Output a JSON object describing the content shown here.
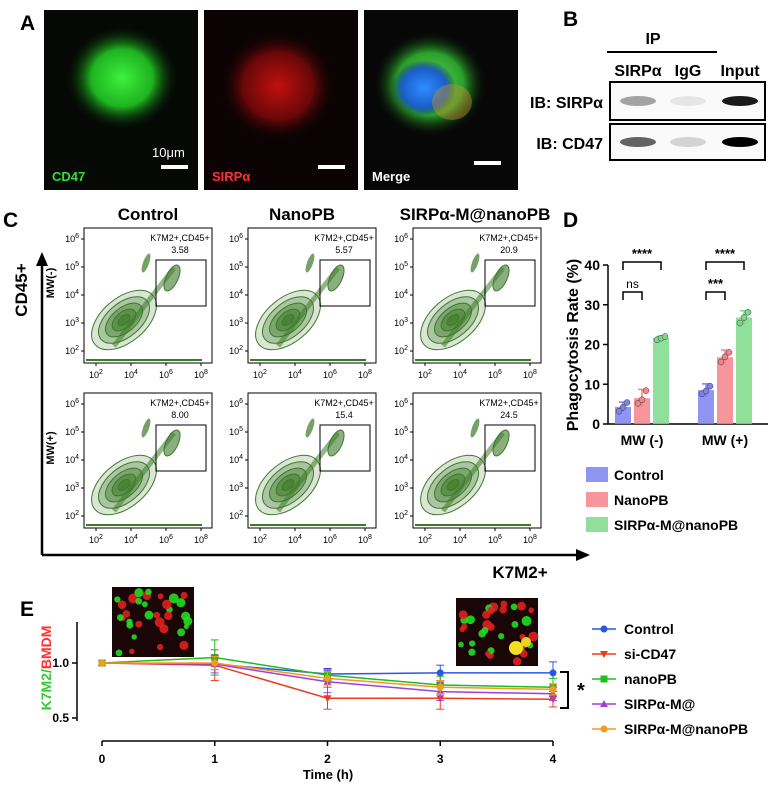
{
  "panels": {
    "a": "A",
    "b": "B",
    "c": "C",
    "d": "D",
    "e": "E"
  },
  "panel_a": {
    "images": [
      {
        "label": "CD47",
        "label_color": "#2fe02f",
        "scale_text": "10μm"
      },
      {
        "label": "SIRPα",
        "label_color": "#ff3030"
      },
      {
        "label": "Merge",
        "label_color": "#ffffff"
      }
    ]
  },
  "panel_b": {
    "ip_label": "IP",
    "lanes": [
      "SIRPα",
      "IgG",
      "Input"
    ],
    "rows": [
      {
        "label": "IB: SIRPα",
        "intensity": [
          0.35,
          0.08,
          0.9
        ]
      },
      {
        "label": "IB: CD47",
        "intensity": [
          0.6,
          0.15,
          1.0
        ]
      }
    ]
  },
  "panel_c": {
    "columns": [
      "Control",
      "NanoPB",
      "SIRPα-M@nanoPB"
    ],
    "rows": [
      "MW(-)",
      "MW(+)"
    ],
    "y_axis_title": "CD45+",
    "x_axis_title": "K7M2+",
    "gate_label": "K7M2+,CD45+",
    "gate_values": [
      [
        "3.58",
        "5.57",
        "20.9"
      ],
      [
        "8.00",
        "15.4",
        "24.5"
      ]
    ],
    "x_ticks": [
      {
        "b": "10",
        "e": "2"
      },
      {
        "b": "10",
        "e": "4"
      },
      {
        "b": "10",
        "e": "6"
      },
      {
        "b": "10",
        "e": "8"
      }
    ],
    "y_ticks": [
      {
        "b": "10",
        "e": "2"
      },
      {
        "b": "10",
        "e": "3"
      },
      {
        "b": "10",
        "e": "4"
      },
      {
        "b": "10",
        "e": "5"
      },
      {
        "b": "10",
        "e": "6"
      }
    ],
    "plot_color": "#3c7a28"
  },
  "chart_data": [
    {
      "type": "bar",
      "panel": "D",
      "categories": [
        "MW (-)",
        "MW (+)"
      ],
      "ylabel": "Phagocytosis Rate (%)",
      "ylim": [
        0,
        40
      ],
      "yticks": [
        "0",
        "10",
        "20",
        "30",
        "40"
      ],
      "series": [
        {
          "name": "Control",
          "values": [
            4.3,
            8.5
          ],
          "errors": [
            1.2,
            1.6
          ],
          "color": "#7d82f0",
          "points": [
            [
              3.2,
              4.2,
              5.4
            ],
            [
              7.6,
              8.3,
              9.5
            ]
          ]
        },
        {
          "name": "NanoPB",
          "values": [
            6.5,
            16.8
          ],
          "errors": [
            2.2,
            1.8
          ],
          "color": "#f4828b",
          "points": [
            [
              5.2,
              6.1,
              8.4
            ],
            [
              15.6,
              16.9,
              18.0
            ]
          ]
        },
        {
          "name": "SIRPα-M@nanoPB",
          "values": [
            21.6,
            26.8
          ],
          "errors": [
            0.5,
            1.7
          ],
          "color": "#7dd98a",
          "points": [
            [
              21.2,
              21.6,
              22.0
            ],
            [
              25.4,
              26.8,
              28.1
            ]
          ]
        }
      ],
      "significance": [
        {
          "label": "****",
          "group": 0,
          "from": 0,
          "to": 2
        },
        {
          "label": "ns",
          "group": 0,
          "from": 0,
          "to": 1
        },
        {
          "label": "****",
          "group": 1,
          "from": 0,
          "to": 2
        },
        {
          "label": "***",
          "group": 1,
          "from": 0,
          "to": 1
        }
      ],
      "legend": [
        "Control",
        "NanoPB",
        "SIRPα-M@nanoPB"
      ]
    },
    {
      "type": "line",
      "panel": "E",
      "x": [
        0,
        1,
        2,
        3,
        4
      ],
      "xlabel": "Time (h)",
      "ylabel_parts": [
        {
          "text": "K7M2",
          "color": "#33cc33"
        },
        {
          "text": "/",
          "color": "#33cc33"
        },
        {
          "text": "BMDM",
          "color": "#ff3333"
        }
      ],
      "ylim": [
        0.5,
        1.3
      ],
      "yticks": [
        "0.5",
        "1.0"
      ],
      "xticks": [
        "0",
        "1",
        "2",
        "3",
        "4"
      ],
      "series": [
        {
          "name": "Control",
          "color": "#2a55e8",
          "marker": "circle",
          "values": [
            1.0,
            0.99,
            0.9,
            0.91,
            0.91
          ],
          "errors": [
            0,
            0.05,
            0.05,
            0.07,
            0.1
          ]
        },
        {
          "name": "si-CD47",
          "color": "#ee3b1c",
          "marker": "triangle-down",
          "values": [
            1.0,
            0.98,
            0.68,
            0.68,
            0.67
          ],
          "errors": [
            0,
            0.14,
            0.1,
            0.1,
            0.07
          ]
        },
        {
          "name": "nanoPB",
          "color": "#22bb22",
          "marker": "square",
          "values": [
            1.0,
            1.05,
            0.89,
            0.8,
            0.78
          ],
          "errors": [
            0,
            0.16,
            0.05,
            0.08,
            0.08
          ]
        },
        {
          "name": "SIRPα-M@",
          "color": "#a040d8",
          "marker": "triangle-up",
          "values": [
            1.0,
            0.99,
            0.83,
            0.74,
            0.72
          ],
          "errors": [
            0,
            0.08,
            0.1,
            0.08,
            0.06
          ]
        },
        {
          "name": "SIRPα-M@nanoPB",
          "color": "#f59a1a",
          "marker": "circle",
          "values": [
            1.0,
            1.0,
            0.86,
            0.78,
            0.76
          ],
          "errors": [
            0,
            0.06,
            0.06,
            0.06,
            0.05
          ]
        }
      ],
      "significance": "*"
    }
  ]
}
